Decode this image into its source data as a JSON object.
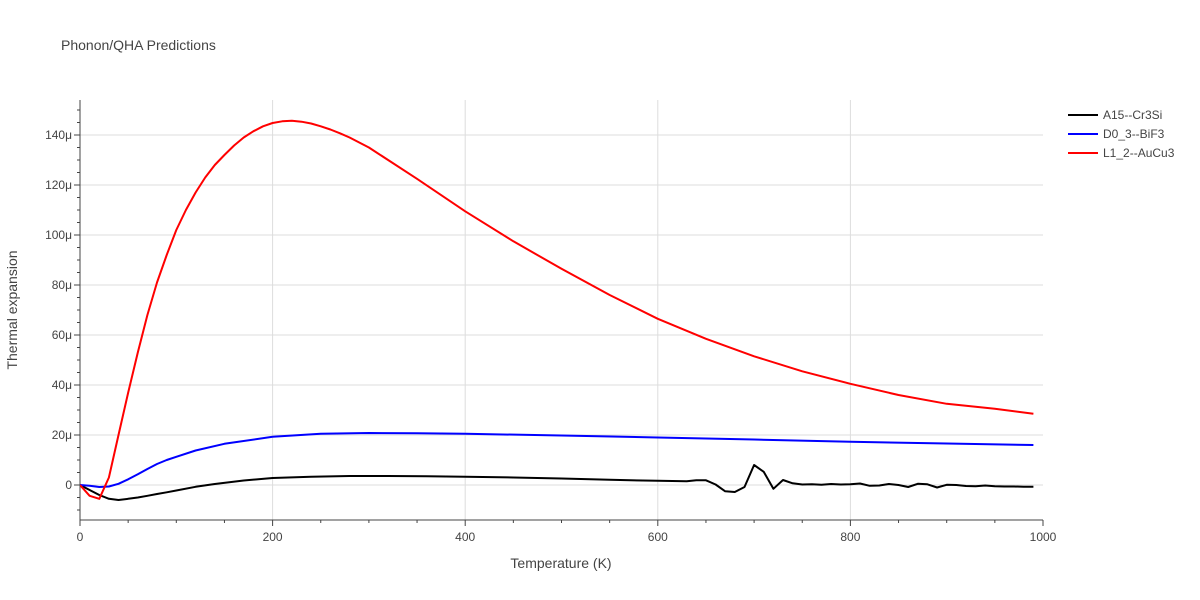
{
  "chart_data": {
    "type": "line",
    "title": "Phonon/QHA Predictions",
    "xlabel": "Temperature (K)",
    "ylabel": "Thermal expansion",
    "xlim": [
      0,
      1000
    ],
    "ylim": [
      -14,
      154
    ],
    "y_unit_suffix": "μ",
    "x_ticks": [
      0,
      200,
      400,
      600,
      800,
      1000
    ],
    "x_tick_labels": [
      "0",
      "200",
      "400",
      "600",
      "800",
      "1000"
    ],
    "y_ticks": [
      0,
      20,
      40,
      60,
      80,
      100,
      120,
      140
    ],
    "y_tick_labels": [
      "0",
      "20μ",
      "40μ",
      "60μ",
      "80μ",
      "100μ",
      "120μ",
      "140μ"
    ],
    "grid": true,
    "legend_position": "top-right",
    "series": [
      {
        "name": "A15--Cr3Si",
        "color": "#000000",
        "x": [
          0,
          10,
          20,
          30,
          40,
          50,
          60,
          70,
          80,
          90,
          100,
          120,
          140,
          170,
          200,
          240,
          280,
          320,
          360,
          400,
          450,
          500,
          550,
          600,
          630,
          640,
          650,
          660,
          670,
          680,
          690,
          700,
          710,
          720,
          730,
          740,
          750,
          760,
          770,
          780,
          790,
          800,
          810,
          820,
          830,
          840,
          850,
          860,
          870,
          880,
          890,
          900,
          910,
          920,
          930,
          940,
          950,
          960,
          970,
          980,
          990
        ],
        "y": [
          0,
          -2,
          -4,
          -5.5,
          -6,
          -5.5,
          -5,
          -4.3,
          -3.6,
          -2.9,
          -2.2,
          -0.7,
          0.4,
          1.8,
          2.8,
          3.3,
          3.6,
          3.6,
          3.5,
          3.3,
          3.0,
          2.6,
          2.1,
          1.7,
          1.5,
          1.9,
          1.9,
          0.2,
          -2.5,
          -2.8,
          -0.8,
          8.0,
          5.3,
          -1.5,
          2.0,
          0.7,
          0.2,
          0.3,
          0.1,
          0.4,
          0.2,
          0.3,
          0.6,
          -0.3,
          -0.2,
          0.4,
          0.0,
          -0.8,
          0.5,
          0.3,
          -1.0,
          0.1,
          0.0,
          -0.4,
          -0.5,
          -0.2,
          -0.5,
          -0.6,
          -0.6,
          -0.7,
          -0.7
        ]
      },
      {
        "name": "D0_3--BiF3",
        "color": "#0000ff",
        "x": [
          0,
          10,
          20,
          30,
          40,
          50,
          60,
          70,
          80,
          90,
          100,
          120,
          150,
          200,
          250,
          300,
          350,
          400,
          500,
          600,
          700,
          800,
          900,
          990
        ],
        "y": [
          0,
          -0.3,
          -0.8,
          -0.6,
          0.5,
          2.3,
          4.3,
          6.4,
          8.4,
          10.0,
          11.3,
          13.8,
          16.5,
          19.3,
          20.5,
          20.8,
          20.7,
          20.5,
          19.8,
          19.0,
          18.2,
          17.3,
          16.6,
          16.0
        ]
      },
      {
        "name": "L1_2--AuCu3",
        "color": "#ff0000",
        "x": [
          0,
          10,
          20,
          30,
          40,
          50,
          60,
          70,
          80,
          90,
          100,
          110,
          120,
          130,
          140,
          150,
          160,
          170,
          180,
          190,
          200,
          210,
          220,
          230,
          240,
          250,
          260,
          270,
          280,
          300,
          350,
          400,
          450,
          500,
          550,
          600,
          650,
          700,
          750,
          800,
          850,
          900,
          950,
          990
        ],
        "y": [
          0,
          -4.3,
          -5.5,
          3,
          20,
          37,
          53,
          68,
          81,
          92,
          102,
          110,
          117,
          123,
          128,
          132,
          135.8,
          139,
          141.5,
          143.5,
          144.8,
          145.5,
          145.7,
          145.3,
          144.6,
          143.5,
          142.2,
          140.7,
          139,
          135,
          122.5,
          109.5,
          97.5,
          86.5,
          76,
          66.5,
          58.5,
          51.5,
          45.5,
          40.5,
          36,
          32.5,
          30.5,
          28.5
        ]
      }
    ]
  }
}
